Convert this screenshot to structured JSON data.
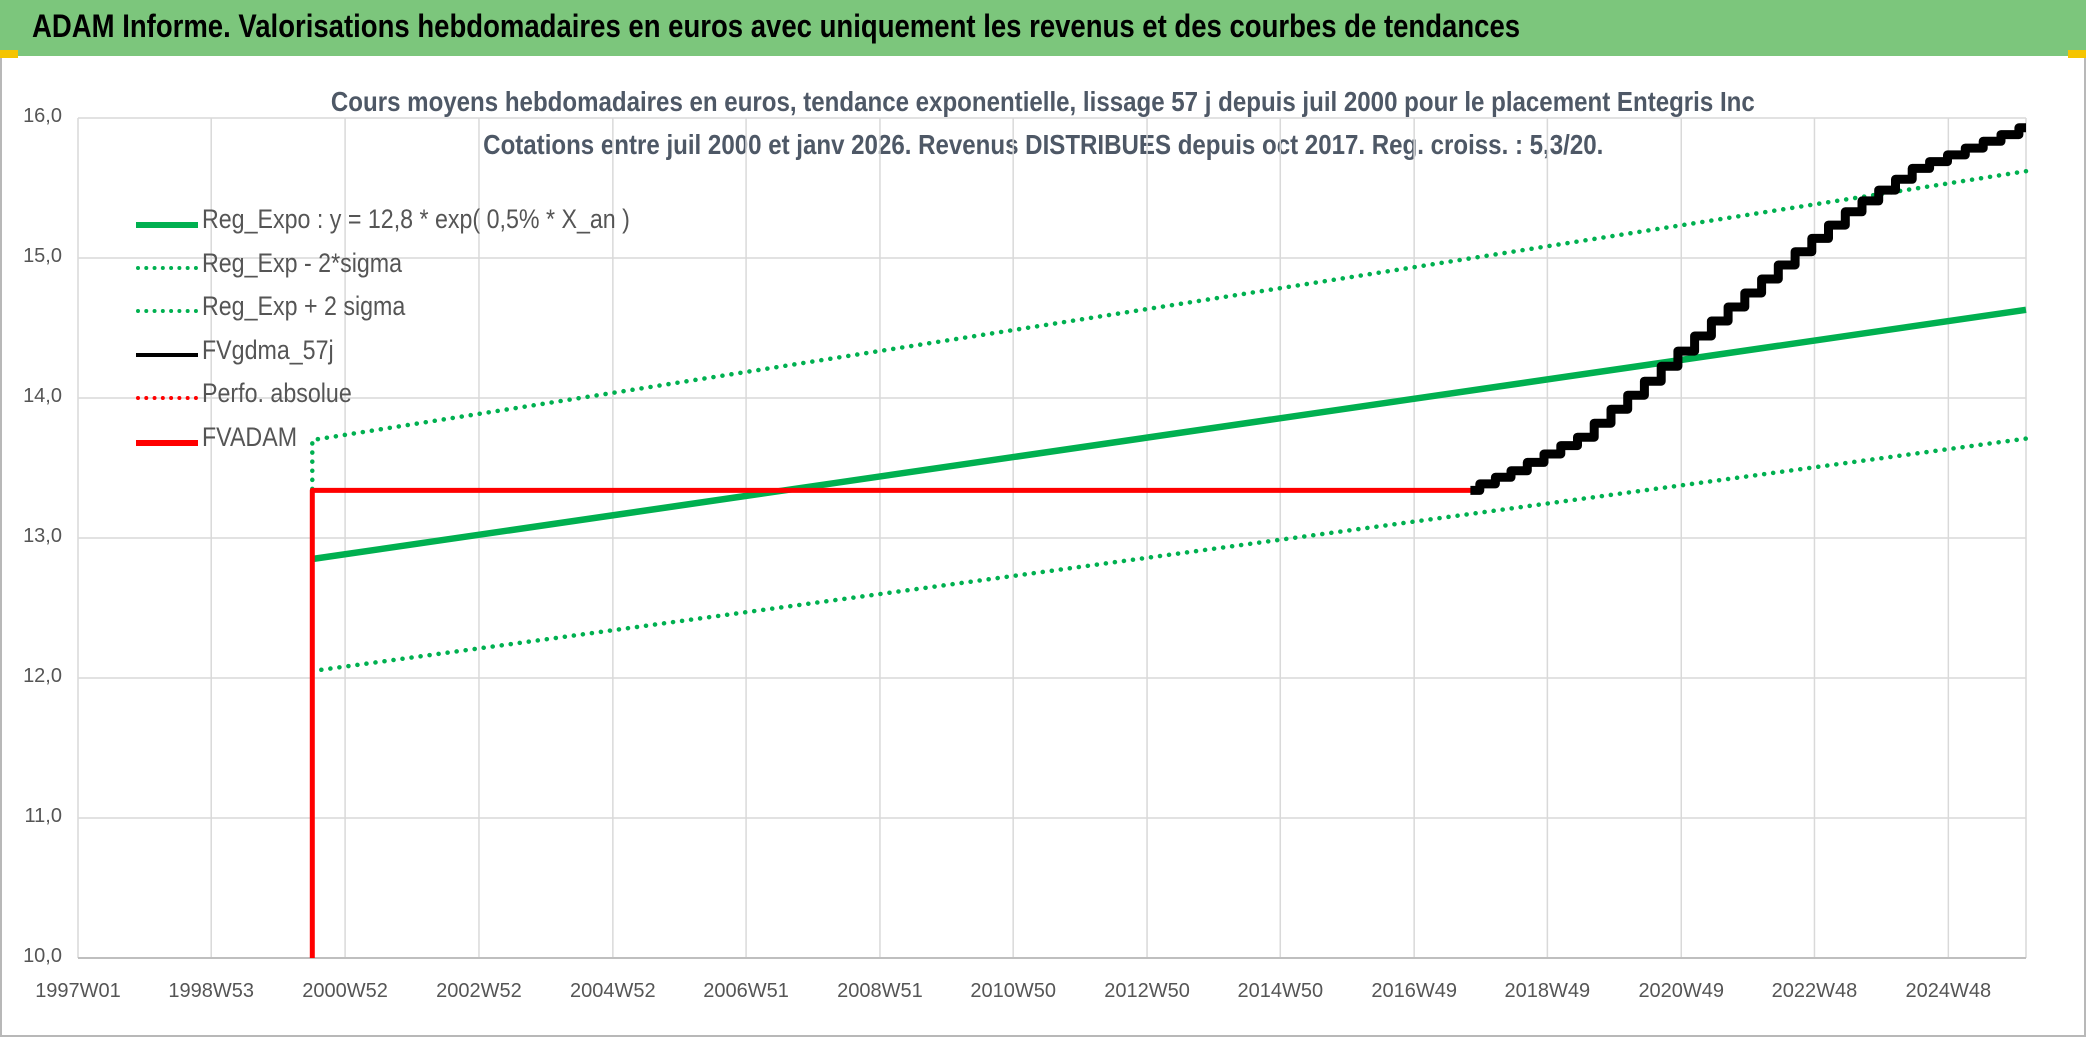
{
  "header": {
    "title": "ADAM Informe. Valorisations hebdomadaires en euros avec uniquement les revenus et des courbes de tendances"
  },
  "colors": {
    "header_bg": "#7cc67c",
    "green": "#00b050",
    "red": "#ff0000",
    "black": "#000000",
    "grid": "#d9d9d9"
  },
  "chart_data": {
    "type": "line",
    "title": "Cours moyens hebdomadaires en euros, tendance exponentielle, lissage 57 j depuis juil 2000 pour le placement Entegris Inc",
    "subtitle": "Cotations entre juil 2000 et janv 2026. Revenus DISTRIBUES depuis oct 2017. Reg. croiss. : 5,3/20.",
    "xlabel": "",
    "ylabel": "",
    "x_ticks": [
      "1997W01",
      "1998W53",
      "2000W52",
      "2002W52",
      "2004W52",
      "2006W51",
      "2008W51",
      "2010W50",
      "2012W50",
      "2014W50",
      "2016W49",
      "2018W49",
      "2020W49",
      "2022W48",
      "2024W48"
    ],
    "x_range": [
      1997.0,
      2026.1
    ],
    "y_ticks": [
      "10,0",
      "11,0",
      "12,0",
      "13,0",
      "14,0",
      "15,0",
      "16,0"
    ],
    "ylim": [
      10,
      16
    ],
    "grid": true,
    "legend_position": "top-left",
    "series": [
      {
        "name": "Reg_Expo : y = 12,8 * exp( 0,5% *  X_an )",
        "style": "solid",
        "color": "#00b050",
        "points": [
          [
            2000.5,
            12.85
          ],
          [
            2026.1,
            14.63
          ]
        ]
      },
      {
        "name": "Reg_Exp - 2*sigma",
        "style": "dotted",
        "color": "#00b050",
        "points": [
          [
            2000.5,
            12.05
          ],
          [
            2026.1,
            13.71
          ]
        ]
      },
      {
        "name": "Reg_Exp + 2 sigma",
        "style": "dotted",
        "color": "#00b050",
        "points": [
          [
            2000.5,
            13.35
          ],
          [
            2000.5,
            13.7
          ],
          [
            2026.1,
            15.62
          ]
        ]
      },
      {
        "name": "FVgdma_57j",
        "style": "solid",
        "color": "#000000",
        "points": [
          [
            2017.8,
            13.34
          ],
          [
            2018.5,
            13.48
          ],
          [
            2019.5,
            13.72
          ],
          [
            2020.5,
            14.12
          ],
          [
            2021.5,
            14.55
          ],
          [
            2022.5,
            14.95
          ],
          [
            2023.5,
            15.33
          ],
          [
            2024.5,
            15.64
          ],
          [
            2026.1,
            15.93
          ]
        ]
      },
      {
        "name": "Perfo. absolue",
        "style": "dotted",
        "color": "#ff0000",
        "points": []
      },
      {
        "name": "FVADAM",
        "style": "solid",
        "color": "#ff0000",
        "points": [
          [
            2000.5,
            10.0
          ],
          [
            2000.5,
            13.34
          ],
          [
            2017.8,
            13.34
          ],
          [
            2018.5,
            13.48
          ],
          [
            2019.5,
            13.72
          ],
          [
            2020.5,
            14.12
          ],
          [
            2021.5,
            14.55
          ],
          [
            2022.5,
            14.95
          ],
          [
            2023.5,
            15.33
          ],
          [
            2024.5,
            15.64
          ],
          [
            2026.1,
            15.93
          ]
        ]
      }
    ]
  }
}
